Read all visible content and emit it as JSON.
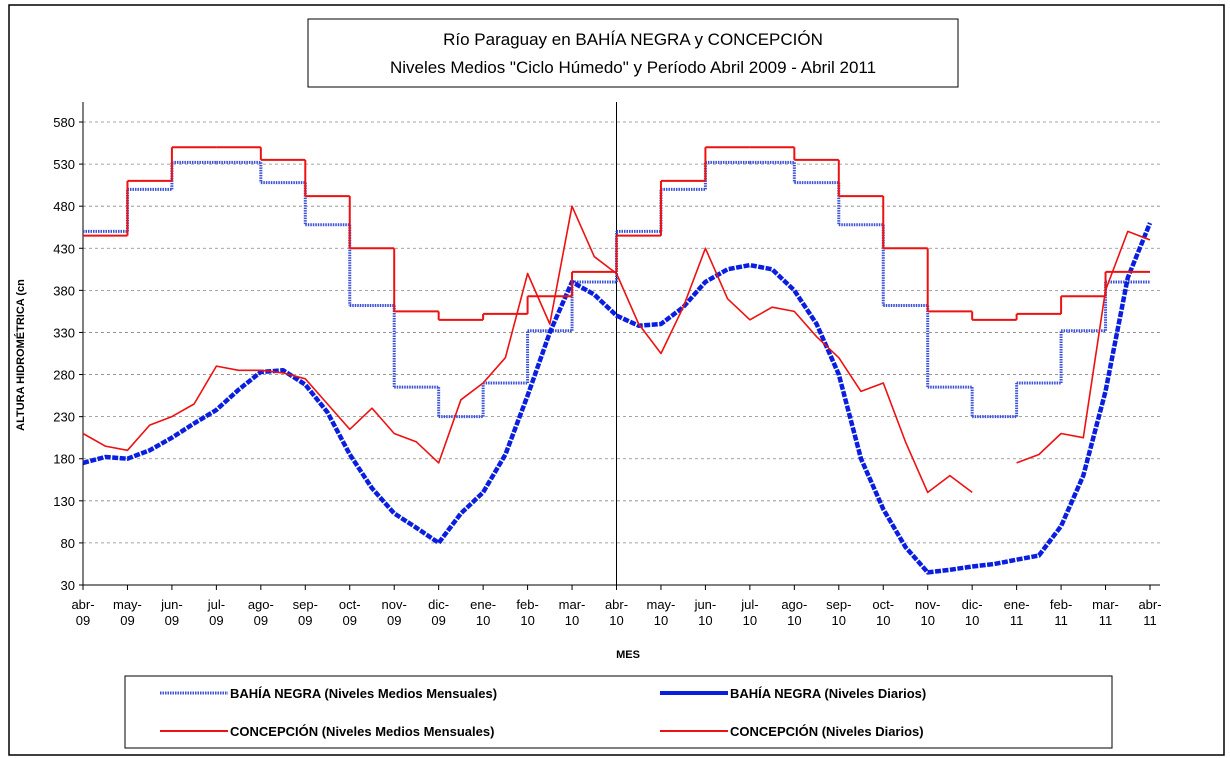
{
  "chart_data": {
    "type": "line",
    "title": "Río Paraguay en BAHÍA NEGRA y CONCEPCIÓN",
    "subtitle": "Niveles Medios \"Ciclo Húmedo\" y Período Abril 2009 - Abril 2011",
    "x_label": "MES",
    "y_label": "ALTURA HIDROMÉTRICA (cn",
    "categories": [
      "abr-09",
      null,
      "may-09",
      null,
      "jun-09",
      null,
      "jul-09",
      null,
      "ago-09",
      null,
      "sep-09",
      null,
      "oct-09",
      null,
      "nov-09",
      null,
      "dic-09",
      null,
      "ene-10",
      null,
      "feb-10",
      null,
      "mar-10",
      null,
      "abr-10",
      null,
      "may-10",
      null,
      "jun-10",
      null,
      "jul-10",
      null,
      "ago-10",
      null,
      "sep-10",
      null,
      "oct-10",
      null,
      "nov-10",
      null,
      "dic-10",
      null,
      "ene-11",
      null,
      "feb-11",
      null,
      "mar-11",
      null,
      "abr-11"
    ],
    "ylim": [
      30,
      580
    ],
    "yticks": [
      30,
      80,
      130,
      180,
      230,
      280,
      330,
      380,
      430,
      480,
      530,
      580
    ],
    "grid": true,
    "series": [
      {
        "name": "BAHÍA NEGRA (Niveles Medios Mensuales)",
        "color": "#3a4fd8",
        "step": true,
        "values": [
          null,
          450,
          null,
          500,
          null,
          532,
          null,
          532,
          null,
          508,
          null,
          458,
          null,
          362,
          null,
          265,
          null,
          230,
          null,
          270,
          null,
          332,
          null,
          390,
          null,
          450,
          null,
          500,
          null,
          532,
          null,
          532,
          null,
          508,
          null,
          458,
          null,
          362,
          null,
          265,
          null,
          230,
          null,
          270,
          null,
          332,
          null,
          390,
          null
        ]
      },
      {
        "name": "BAHÍA NEGRA (Niveles Diarios)",
        "color": "#0a1ee0",
        "step": false,
        "values": [
          175,
          182,
          180,
          190,
          205,
          222,
          238,
          262,
          283,
          285,
          268,
          235,
          185,
          145,
          115,
          98,
          80,
          115,
          140,
          185,
          255,
          330,
          390,
          375,
          350,
          338,
          340,
          360,
          390,
          405,
          410,
          405,
          380,
          340,
          280,
          180,
          120,
          75,
          45,
          48,
          52,
          55,
          60,
          65,
          100,
          160,
          260,
          395,
          460
        ]
      },
      {
        "name": "CONCEPCIÓN (Niveles Medios Mensuales)",
        "color": "#ee1111",
        "step": true,
        "values": [
          null,
          445,
          null,
          510,
          null,
          550,
          null,
          550,
          null,
          535,
          null,
          492,
          null,
          430,
          null,
          355,
          null,
          345,
          null,
          352,
          null,
          373,
          null,
          402,
          null,
          445,
          null,
          510,
          null,
          550,
          null,
          550,
          null,
          535,
          null,
          492,
          null,
          430,
          null,
          355,
          null,
          345,
          null,
          352,
          null,
          373,
          null,
          402,
          null
        ]
      },
      {
        "name": "CONCEPCIÓN (Niveles Diarios)",
        "color": "#ee1111",
        "step": false,
        "values": [
          210,
          195,
          190,
          220,
          230,
          245,
          290,
          285,
          285,
          282,
          275,
          245,
          215,
          240,
          210,
          200,
          175,
          250,
          270,
          300,
          400,
          340,
          480,
          420,
          400,
          340,
          305,
          360,
          430,
          370,
          345,
          360,
          355,
          325,
          300,
          260,
          270,
          200,
          140,
          160,
          140,
          null,
          175,
          185,
          210,
          205,
          380,
          450,
          440
        ]
      }
    ]
  }
}
